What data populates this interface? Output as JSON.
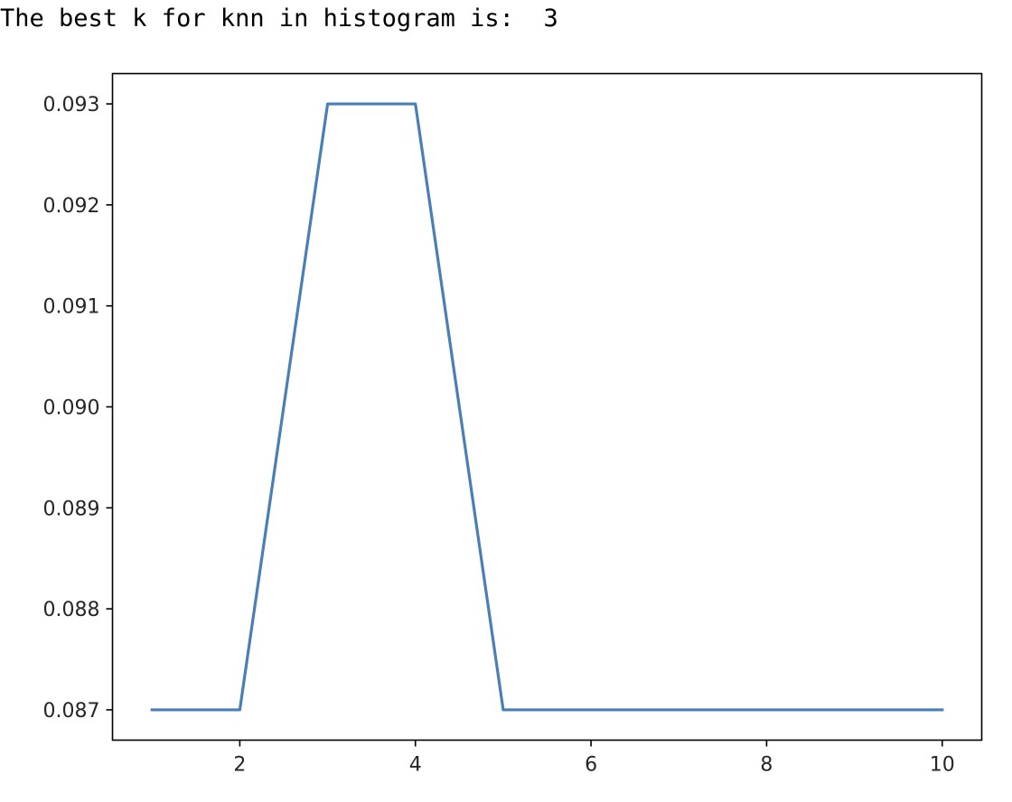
{
  "output": {
    "text": "The best k for knn in histogram is:  3"
  },
  "chart_data": {
    "type": "line",
    "title": "",
    "xlabel": "",
    "ylabel": "",
    "x": [
      1,
      2,
      3,
      4,
      5,
      6,
      7,
      8,
      9,
      10
    ],
    "series": [
      {
        "values": [
          0.087,
          0.087,
          0.093,
          0.093,
          0.087,
          0.087,
          0.087,
          0.087,
          0.087,
          0.087
        ],
        "color": "#4a7fb5"
      }
    ],
    "xticks": [
      2,
      4,
      6,
      8,
      10
    ],
    "xtick_labels": [
      "2",
      "4",
      "6",
      "8",
      "10"
    ],
    "yticks": [
      0.087,
      0.088,
      0.089,
      0.09,
      0.091,
      0.092,
      0.093
    ],
    "ytick_labels": [
      "0.087",
      "0.088",
      "0.089",
      "0.090",
      "0.091",
      "0.092",
      "0.093"
    ],
    "grid": false,
    "legend": false
  }
}
